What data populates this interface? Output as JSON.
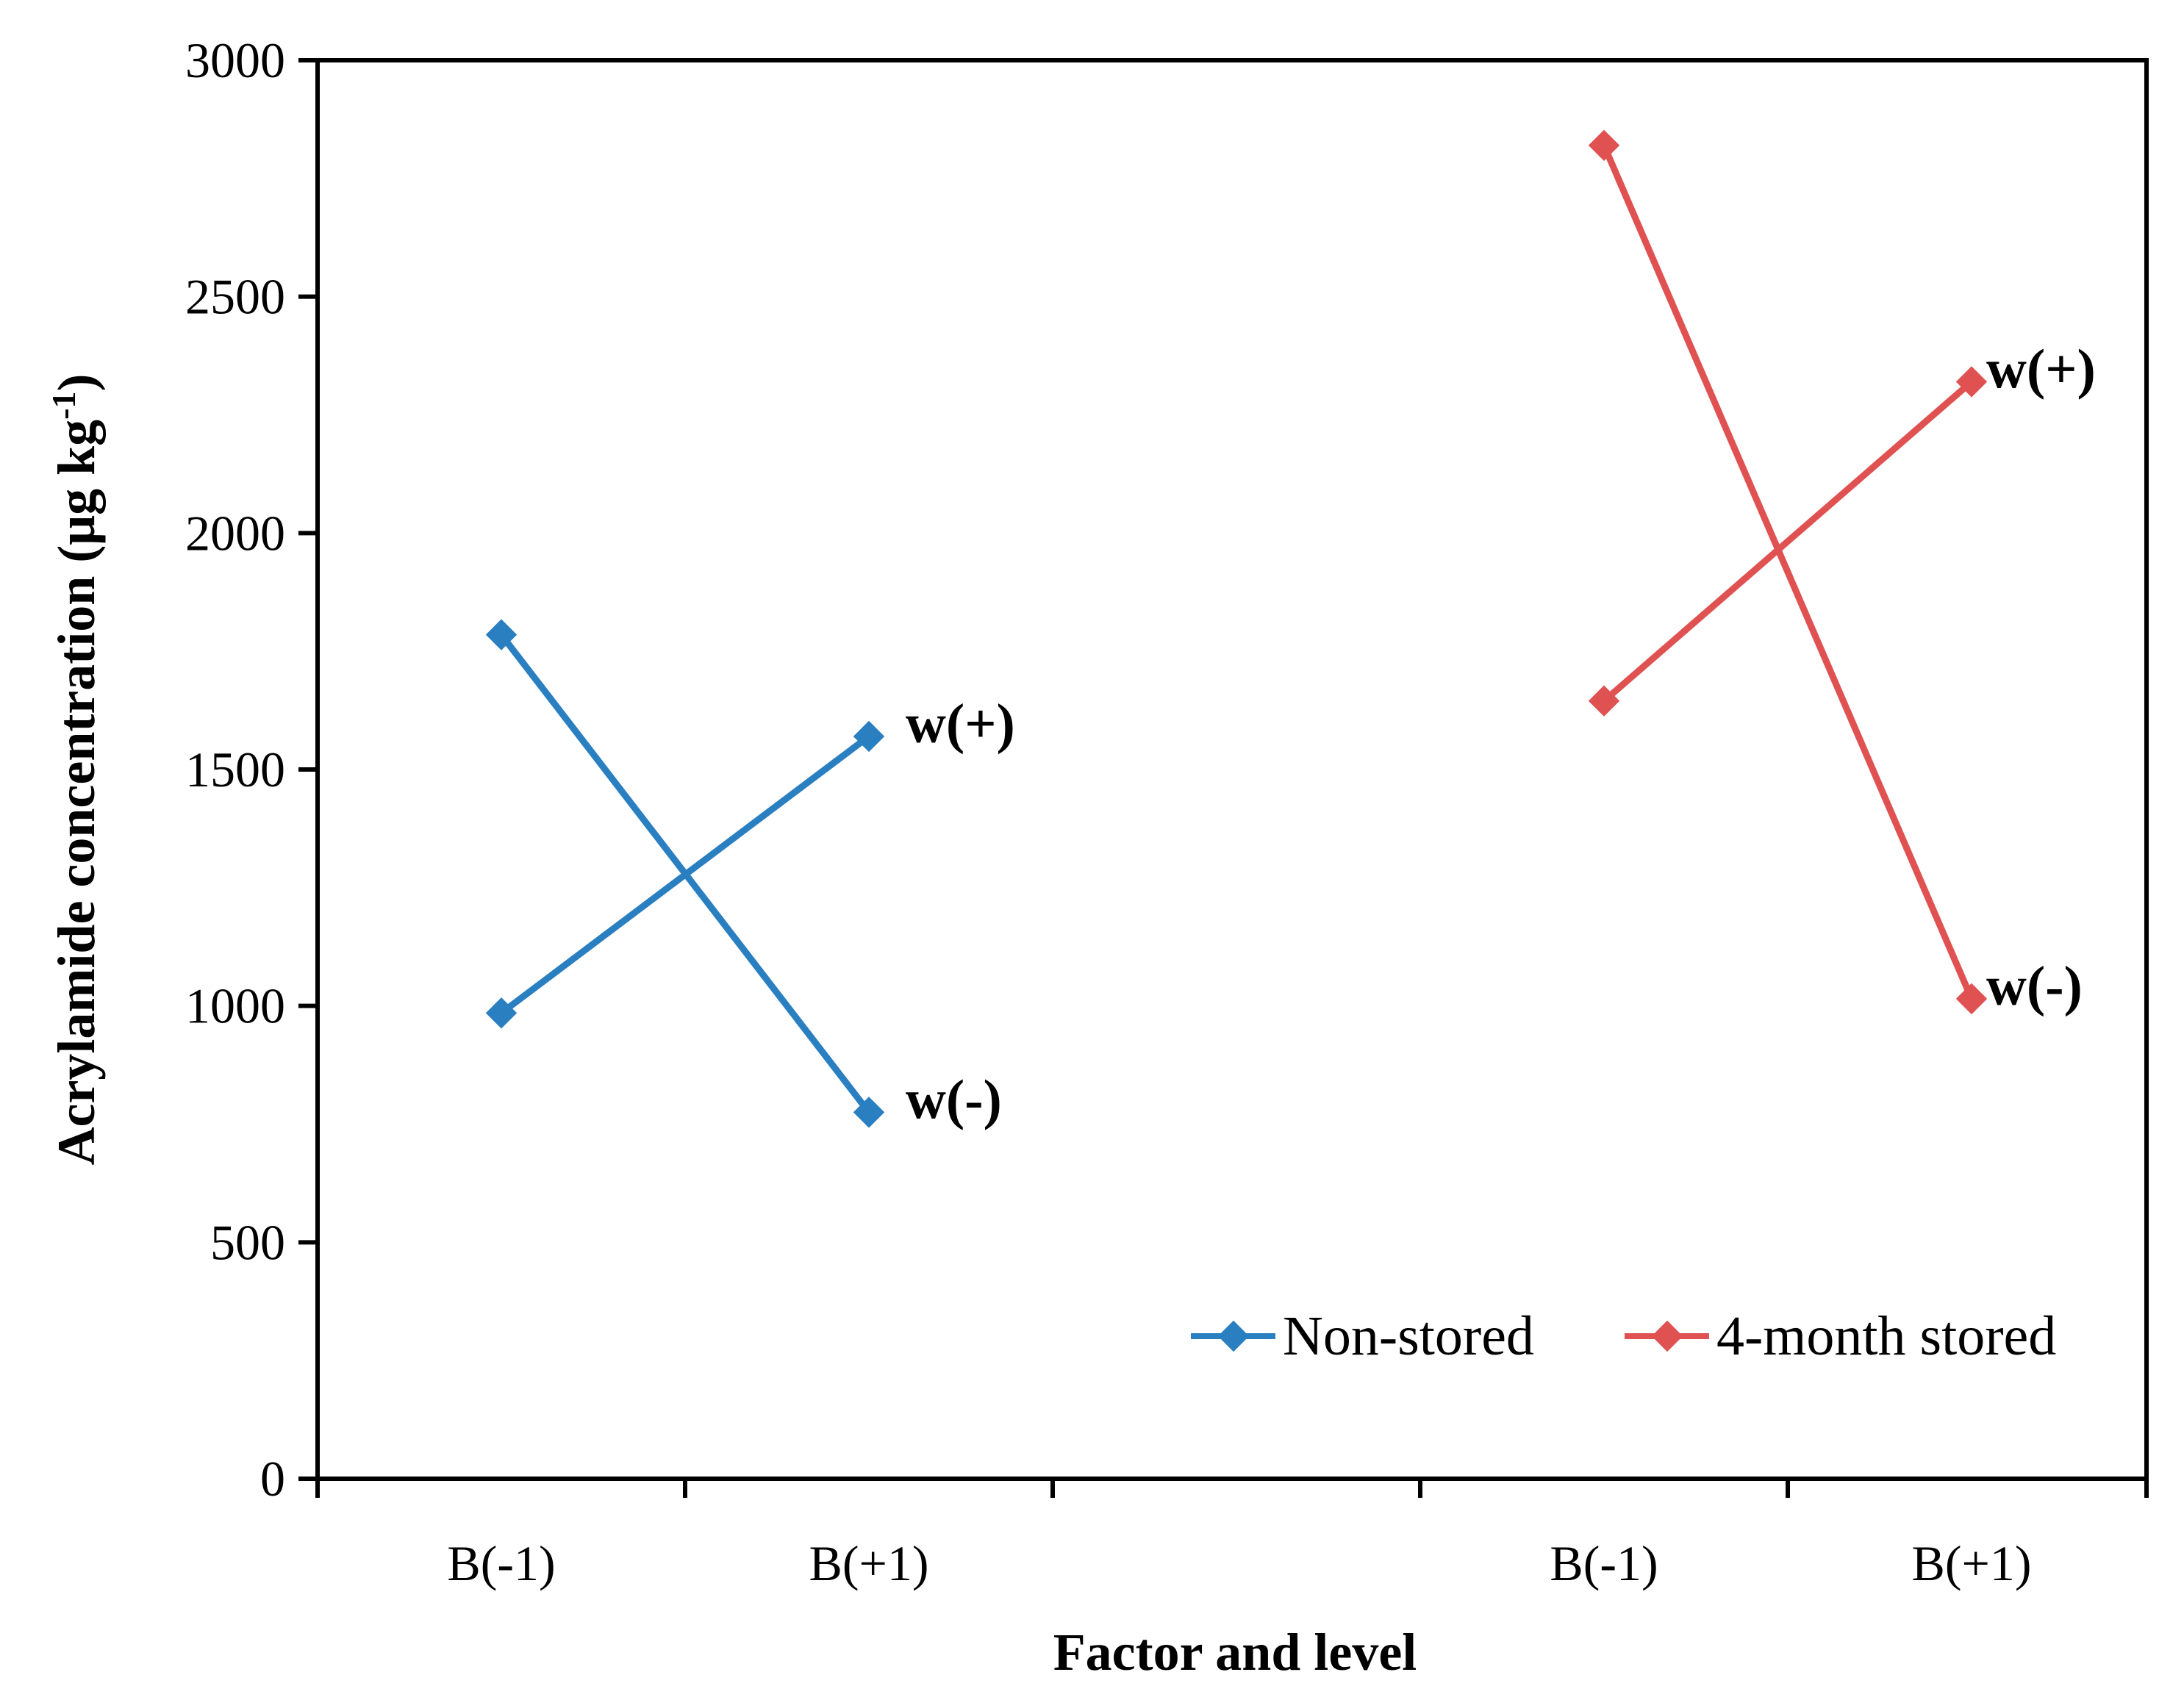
{
  "chart_data": {
    "type": "line",
    "title": "",
    "xlabel": "Factor and level",
    "ylabel": {
      "main": "Acrylamide concentration (μg kg",
      "sup": "-1",
      "close": ")"
    },
    "ylim": [
      0,
      3000
    ],
    "yticks": [
      "0",
      "500",
      "1000",
      "1500",
      "2000",
      "2500",
      "3000"
    ],
    "grid": false,
    "legend_position": "bottom-right",
    "groups": [
      {
        "name": "Non-stored",
        "color": "#2a7fc1",
        "categories": [
          "B(-1)",
          "B(+1)"
        ]
      },
      {
        "name": "4-month stored",
        "color": "#e05252",
        "categories": [
          "B(-1)",
          "B(+1)"
        ]
      }
    ],
    "series": [
      {
        "group": 0,
        "name": "w(+)",
        "values": [
          985,
          1570
        ]
      },
      {
        "group": 0,
        "name": "w(-)",
        "values": [
          1785,
          775
        ]
      },
      {
        "group": 1,
        "name": "w(+)",
        "values": [
          1645,
          2320
        ]
      },
      {
        "group": 1,
        "name": "w(-)",
        "values": [
          2820,
          1015
        ]
      }
    ]
  }
}
